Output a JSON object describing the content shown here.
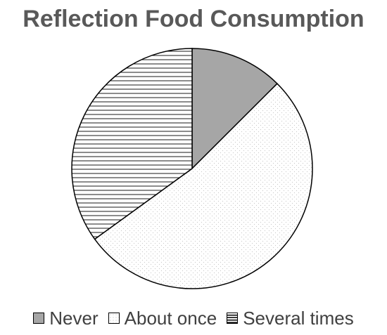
{
  "chart_data": {
    "type": "pie",
    "title": "Reflection Food Consumption",
    "categories": [
      "Never",
      "About once",
      "Several times"
    ],
    "values": [
      12.5,
      52.5,
      35
    ],
    "legend_position": "bottom",
    "colors": {
      "Never": "#a6a6a6",
      "About once": "#ffffff",
      "Several times": "#ffffff"
    },
    "patterns": {
      "Never": "solid",
      "About once": "dotted",
      "Several times": "horizontal-lines"
    }
  }
}
